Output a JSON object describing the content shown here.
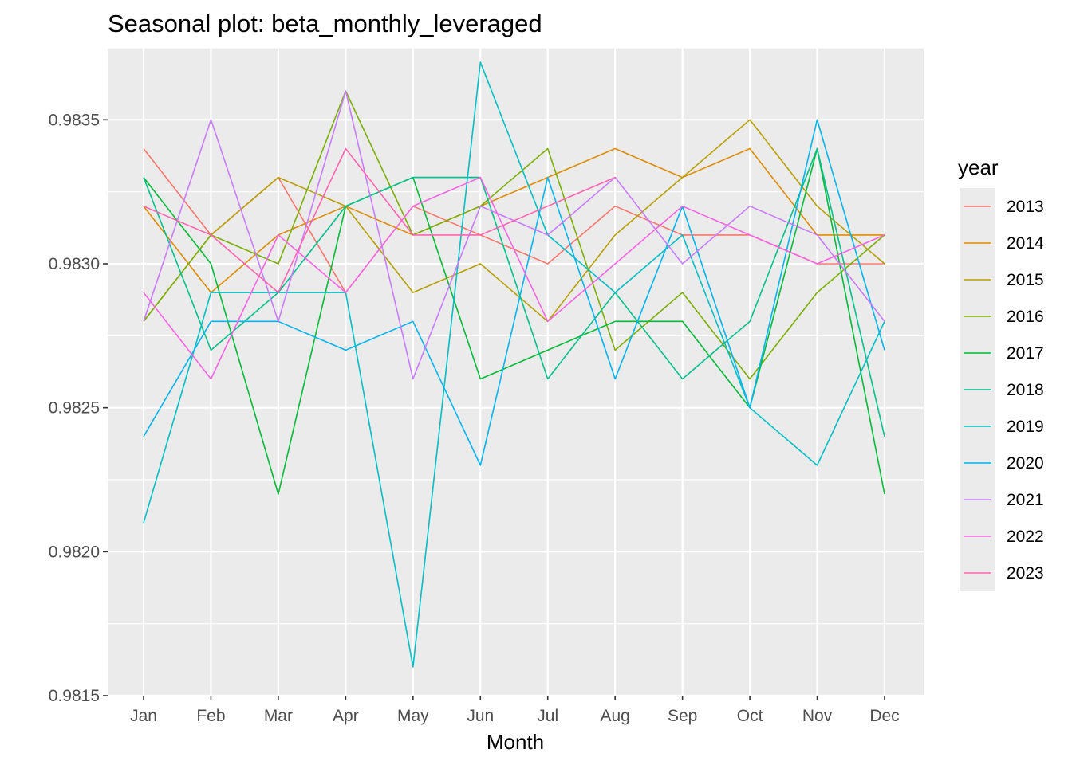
{
  "chart_data": {
    "type": "line",
    "title": "Seasonal plot: beta_monthly_leveraged",
    "xlabel": "Month",
    "ylabel": "",
    "categories": [
      "Jan",
      "Feb",
      "Mar",
      "Apr",
      "May",
      "Jun",
      "Jul",
      "Aug",
      "Sep",
      "Oct",
      "Nov",
      "Dec"
    ],
    "ylim": [
      0.9815,
      0.98375
    ],
    "yticks": [
      "0.9815",
      "0.9820",
      "0.9825",
      "0.9830",
      "0.9835"
    ],
    "grid": true,
    "legend": {
      "title": "year",
      "position": "right"
    },
    "series": [
      {
        "name": "2013",
        "color": "#F8766D",
        "values": [
          0.9834,
          0.9831,
          0.9833,
          0.9829,
          0.9832,
          0.9831,
          0.983,
          0.9832,
          0.9831,
          0.9831,
          0.983,
          0.983
        ]
      },
      {
        "name": "2014",
        "color": "#DE8C00",
        "values": [
          0.9832,
          0.9829,
          0.9831,
          0.9832,
          0.9831,
          0.9832,
          0.9833,
          0.9834,
          0.9833,
          0.9834,
          0.9831,
          0.9831
        ]
      },
      {
        "name": "2015",
        "color": "#B79F00",
        "values": [
          0.9828,
          0.9831,
          0.9833,
          0.9832,
          0.9829,
          0.983,
          0.9828,
          0.9831,
          0.9833,
          0.9835,
          0.9832,
          0.983
        ]
      },
      {
        "name": "2016",
        "color": "#7CAE00",
        "values": [
          0.9828,
          0.9831,
          0.983,
          0.9836,
          0.9831,
          0.9832,
          0.9834,
          0.9827,
          0.9829,
          0.9826,
          0.9829,
          0.9831
        ]
      },
      {
        "name": "2017",
        "color": "#00BA38",
        "values": [
          0.9833,
          0.983,
          0.9822,
          0.9832,
          0.9833,
          0.9826,
          0.9827,
          0.9828,
          0.9828,
          0.9825,
          0.9834,
          0.9822
        ]
      },
      {
        "name": "2018",
        "color": "#00C08B",
        "values": [
          0.9833,
          0.9827,
          0.9829,
          0.9832,
          0.9833,
          0.9833,
          0.9826,
          0.9829,
          0.9826,
          0.9828,
          0.9834,
          0.9824
        ]
      },
      {
        "name": "2019",
        "color": "#00BFC4",
        "values": [
          0.9821,
          0.9829,
          0.9829,
          0.9829,
          0.9816,
          0.9837,
          0.9831,
          0.9829,
          0.9831,
          0.9825,
          0.9823,
          0.9828
        ]
      },
      {
        "name": "2020",
        "color": "#00B4F0",
        "values": [
          0.9824,
          0.9828,
          0.9828,
          0.9827,
          0.9828,
          0.9823,
          0.9833,
          0.9826,
          0.9832,
          0.9825,
          0.9835,
          0.9827
        ]
      },
      {
        "name": "2021",
        "color": "#C77CFF",
        "values": [
          0.9828,
          0.9835,
          0.9828,
          0.9836,
          0.9826,
          0.9832,
          0.9831,
          0.9833,
          0.983,
          0.9832,
          0.9831,
          0.9828
        ]
      },
      {
        "name": "2022",
        "color": "#F564E3",
        "values": [
          0.9829,
          0.9826,
          0.9831,
          0.9829,
          0.9832,
          0.9833,
          0.9828,
          0.983,
          0.9832,
          0.9831,
          0.983,
          0.9831
        ]
      },
      {
        "name": "2023",
        "color": "#FF64B0",
        "values": [
          0.9832,
          0.9831,
          0.9829,
          0.9834,
          0.9831,
          0.9831,
          0.9832,
          0.9833,
          null,
          null,
          null,
          null
        ]
      }
    ]
  }
}
